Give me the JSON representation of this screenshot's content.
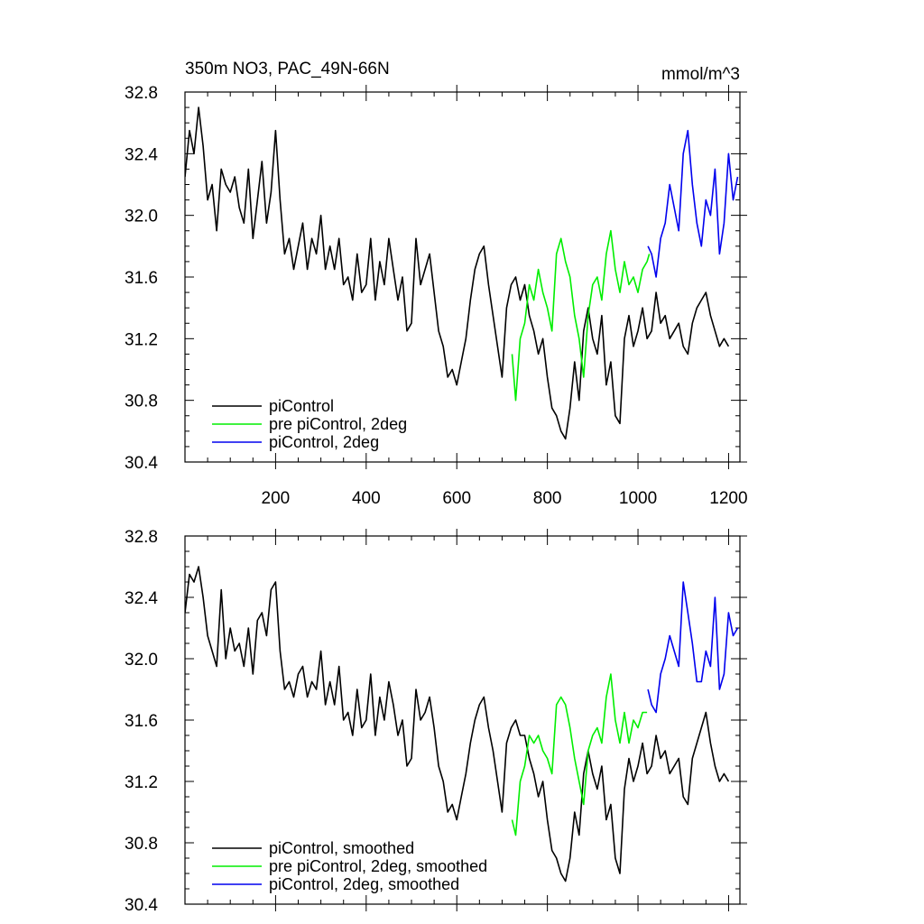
{
  "title": "350m NO3, PAC_49N-66N",
  "units": "mmol/m^3",
  "chart_data": [
    {
      "type": "line",
      "panel": "top",
      "xlim": [
        0,
        1225
      ],
      "ylim": [
        30.4,
        32.8
      ],
      "xticks": [
        200,
        400,
        600,
        800,
        1000,
        1200
      ],
      "yticks": [
        30.4,
        30.8,
        31.2,
        31.6,
        32.0,
        32.4,
        32.8
      ],
      "ytick_labels": [
        "30.4",
        "30.8",
        "31.2",
        "31.6",
        "32.0",
        "32.4",
        "32.8"
      ],
      "xtick_labels": [
        "200",
        "400",
        "600",
        "800",
        "1000",
        "1200"
      ],
      "legend_position": "bottom-left",
      "series": [
        {
          "name": "piControl",
          "color": "#000000",
          "x": [
            0,
            10,
            20,
            30,
            40,
            50,
            60,
            70,
            80,
            90,
            100,
            110,
            120,
            130,
            140,
            150,
            160,
            170,
            180,
            190,
            200,
            210,
            220,
            230,
            240,
            250,
            260,
            270,
            280,
            290,
            300,
            310,
            320,
            330,
            340,
            350,
            360,
            370,
            380,
            390,
            400,
            410,
            420,
            430,
            440,
            450,
            460,
            470,
            480,
            490,
            500,
            510,
            520,
            530,
            540,
            550,
            560,
            570,
            580,
            590,
            600,
            610,
            620,
            630,
            640,
            650,
            660,
            670,
            680,
            690,
            700,
            710,
            720,
            730,
            740,
            750,
            760,
            770,
            780,
            790,
            800,
            810,
            820,
            830,
            840,
            850,
            860,
            870,
            880,
            890,
            900,
            910,
            920,
            930,
            940,
            950,
            960,
            970,
            980,
            990,
            1000,
            1010,
            1020,
            1030,
            1040,
            1050,
            1060,
            1070,
            1080,
            1090,
            1100,
            1110,
            1120,
            1130,
            1140,
            1150,
            1160,
            1170,
            1180,
            1190,
            1200
          ],
          "values": [
            32.25,
            32.55,
            32.4,
            32.7,
            32.45,
            32.1,
            32.2,
            31.9,
            32.3,
            32.2,
            32.15,
            32.25,
            32.05,
            31.95,
            32.3,
            31.85,
            32.1,
            32.35,
            31.95,
            32.15,
            32.55,
            32.1,
            31.75,
            31.85,
            31.65,
            31.8,
            31.95,
            31.65,
            31.85,
            31.75,
            32.0,
            31.65,
            31.8,
            31.65,
            31.85,
            31.55,
            31.6,
            31.45,
            31.75,
            31.5,
            31.55,
            31.85,
            31.45,
            31.7,
            31.55,
            31.85,
            31.65,
            31.45,
            31.6,
            31.25,
            31.3,
            31.85,
            31.55,
            31.65,
            31.75,
            31.5,
            31.25,
            31.15,
            30.95,
            31.0,
            30.9,
            31.05,
            31.2,
            31.45,
            31.65,
            31.75,
            31.8,
            31.55,
            31.35,
            31.15,
            30.95,
            31.4,
            31.55,
            31.6,
            31.45,
            31.55,
            31.35,
            31.25,
            31.1,
            31.2,
            30.95,
            30.75,
            30.7,
            30.6,
            30.55,
            30.75,
            31.05,
            30.8,
            31.25,
            31.4,
            31.2,
            31.1,
            31.35,
            30.9,
            31.05,
            30.7,
            30.65,
            31.2,
            31.35,
            31.15,
            31.25,
            31.4,
            31.2,
            31.25,
            31.5,
            31.3,
            31.35,
            31.2,
            31.25,
            31.3,
            31.15,
            31.1,
            31.3,
            31.4,
            31.45,
            31.5,
            31.35,
            31.25,
            31.15,
            31.2,
            31.15
          ]
        },
        {
          "name": "pre piControl, 2deg",
          "color": "#00ee00",
          "x": [
            722,
            730,
            740,
            750,
            760,
            770,
            780,
            790,
            800,
            810,
            820,
            830,
            840,
            850,
            860,
            870,
            880,
            890,
            900,
            910,
            920,
            930,
            940,
            950,
            960,
            970,
            980,
            990,
            1000,
            1010,
            1020,
            1025
          ],
          "values": [
            31.1,
            30.8,
            31.2,
            31.3,
            31.55,
            31.45,
            31.65,
            31.5,
            31.4,
            31.25,
            31.75,
            31.85,
            31.7,
            31.6,
            31.35,
            31.2,
            30.95,
            31.35,
            31.55,
            31.6,
            31.45,
            31.75,
            31.9,
            31.65,
            31.5,
            31.7,
            31.55,
            31.6,
            31.5,
            31.65,
            31.7,
            31.75
          ]
        },
        {
          "name": "piControl, 2deg",
          "color": "#0000ee",
          "x": [
            1022,
            1030,
            1040,
            1050,
            1060,
            1070,
            1080,
            1090,
            1100,
            1110,
            1120,
            1130,
            1140,
            1150,
            1160,
            1170,
            1180,
            1190,
            1200,
            1210,
            1220
          ],
          "values": [
            31.8,
            31.75,
            31.6,
            31.85,
            31.95,
            32.2,
            32.05,
            31.9,
            32.4,
            32.55,
            32.2,
            31.95,
            31.8,
            32.1,
            32.0,
            32.3,
            31.75,
            31.95,
            32.4,
            32.1,
            32.25
          ]
        }
      ]
    },
    {
      "type": "line",
      "panel": "bottom",
      "xlim": [
        0,
        1225
      ],
      "ylim": [
        30.4,
        32.8
      ],
      "xticks": [
        200,
        400,
        600,
        800,
        1000,
        1200
      ],
      "yticks": [
        30.4,
        30.8,
        31.2,
        31.6,
        32.0,
        32.4,
        32.8
      ],
      "ytick_labels": [
        "30.4",
        "30.8",
        "31.2",
        "31.6",
        "32.0",
        "32.4",
        "32.8"
      ],
      "legend_position": "bottom-left",
      "series": [
        {
          "name": "piControl, smoothed",
          "color": "#000000",
          "x": [
            0,
            10,
            20,
            30,
            40,
            50,
            60,
            70,
            80,
            90,
            100,
            110,
            120,
            130,
            140,
            150,
            160,
            170,
            180,
            190,
            200,
            210,
            220,
            230,
            240,
            250,
            260,
            270,
            280,
            290,
            300,
            310,
            320,
            330,
            340,
            350,
            360,
            370,
            380,
            390,
            400,
            410,
            420,
            430,
            440,
            450,
            460,
            470,
            480,
            490,
            500,
            510,
            520,
            530,
            540,
            550,
            560,
            570,
            580,
            590,
            600,
            610,
            620,
            630,
            640,
            650,
            660,
            670,
            680,
            690,
            700,
            710,
            720,
            730,
            740,
            750,
            760,
            770,
            780,
            790,
            800,
            810,
            820,
            830,
            840,
            850,
            860,
            870,
            880,
            890,
            900,
            910,
            920,
            930,
            940,
            950,
            960,
            970,
            980,
            990,
            1000,
            1010,
            1020,
            1030,
            1040,
            1050,
            1060,
            1070,
            1080,
            1090,
            1100,
            1110,
            1120,
            1130,
            1140,
            1150,
            1160,
            1170,
            1180,
            1190,
            1200
          ],
          "values": [
            32.3,
            32.55,
            32.5,
            32.6,
            32.4,
            32.15,
            32.05,
            31.95,
            32.45,
            32.0,
            32.2,
            32.05,
            32.1,
            31.95,
            32.2,
            31.9,
            32.25,
            32.3,
            32.15,
            32.45,
            32.5,
            32.05,
            31.8,
            31.85,
            31.75,
            31.9,
            31.95,
            31.75,
            31.85,
            31.8,
            32.05,
            31.7,
            31.85,
            31.7,
            31.95,
            31.6,
            31.65,
            31.5,
            31.8,
            31.55,
            31.6,
            31.9,
            31.5,
            31.75,
            31.6,
            31.85,
            31.7,
            31.5,
            31.6,
            31.3,
            31.35,
            31.8,
            31.6,
            31.65,
            31.75,
            31.55,
            31.3,
            31.2,
            31.0,
            31.05,
            30.95,
            31.1,
            31.25,
            31.45,
            31.6,
            31.7,
            31.75,
            31.55,
            31.4,
            31.2,
            31.0,
            31.45,
            31.55,
            31.6,
            31.5,
            31.5,
            31.35,
            31.25,
            31.1,
            31.2,
            30.95,
            30.75,
            30.7,
            30.6,
            30.55,
            30.7,
            31.0,
            30.85,
            31.25,
            31.4,
            31.25,
            31.15,
            31.3,
            30.95,
            31.05,
            30.7,
            30.6,
            31.15,
            31.35,
            31.2,
            31.3,
            31.45,
            31.25,
            31.3,
            31.5,
            31.35,
            31.4,
            31.25,
            31.3,
            31.35,
            31.1,
            31.05,
            31.35,
            31.45,
            31.55,
            31.65,
            31.45,
            31.3,
            31.2,
            31.25,
            31.2
          ]
        },
        {
          "name": "pre piControl, 2deg, smoothed",
          "color": "#00ee00",
          "x": [
            722,
            730,
            740,
            750,
            760,
            770,
            780,
            790,
            800,
            810,
            820,
            830,
            840,
            850,
            860,
            870,
            880,
            890,
            900,
            910,
            920,
            930,
            940,
            950,
            960,
            970,
            980,
            990,
            1000,
            1010,
            1020
          ],
          "values": [
            30.95,
            30.85,
            31.2,
            31.3,
            31.5,
            31.45,
            31.5,
            31.4,
            31.35,
            31.25,
            31.7,
            31.75,
            31.7,
            31.55,
            31.35,
            31.2,
            31.05,
            31.4,
            31.5,
            31.55,
            31.45,
            31.75,
            31.9,
            31.6,
            31.45,
            31.65,
            31.45,
            31.6,
            31.55,
            31.65,
            31.65
          ]
        },
        {
          "name": "piControl, 2deg, smoothed",
          "color": "#0000ee",
          "x": [
            1022,
            1030,
            1040,
            1050,
            1060,
            1070,
            1080,
            1090,
            1100,
            1110,
            1120,
            1130,
            1140,
            1150,
            1160,
            1170,
            1180,
            1190,
            1200,
            1210,
            1220
          ],
          "values": [
            31.8,
            31.7,
            31.65,
            31.9,
            32.0,
            32.15,
            32.05,
            31.95,
            32.5,
            32.3,
            32.1,
            31.85,
            31.85,
            32.05,
            31.95,
            32.4,
            31.8,
            31.9,
            32.3,
            32.15,
            32.2
          ]
        }
      ]
    }
  ]
}
